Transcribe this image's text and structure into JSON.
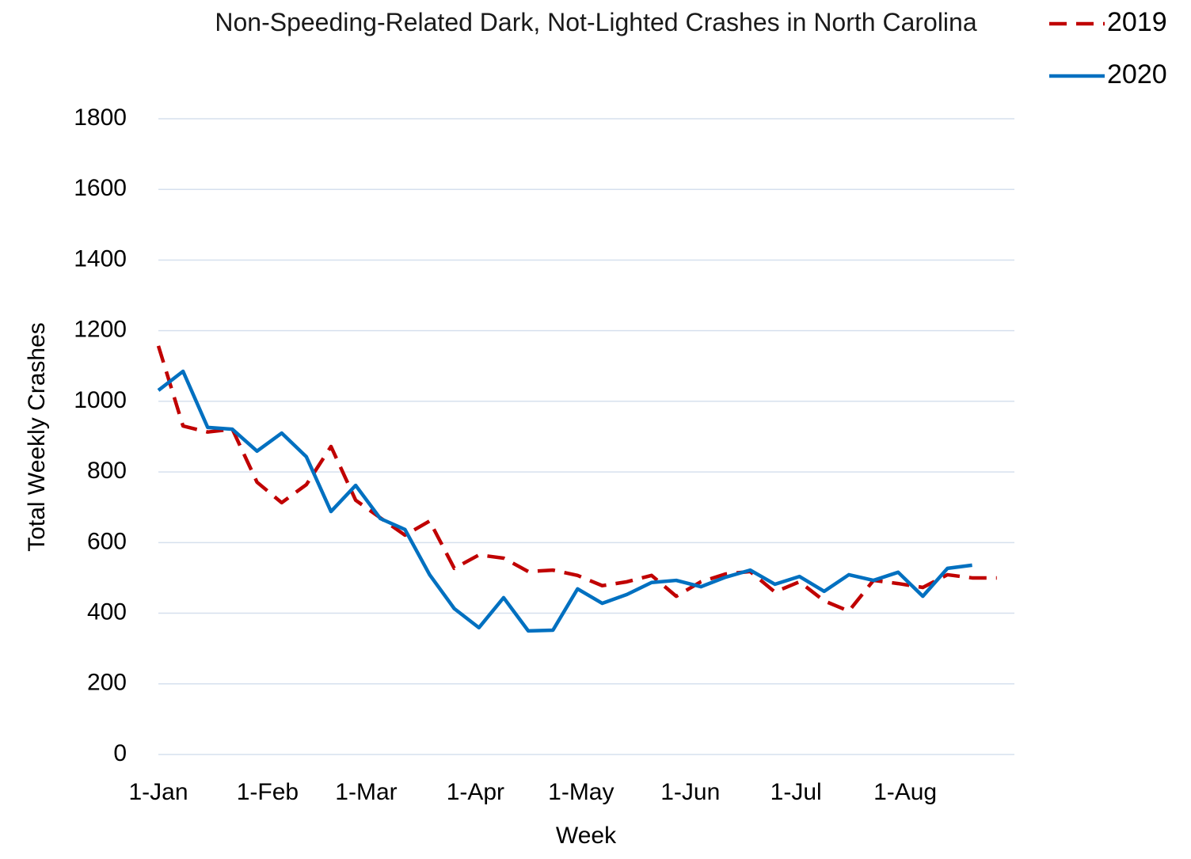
{
  "chart_data": {
    "type": "line",
    "title": "Non-Speeding-Related Dark, Not-Lighted Crashes in North Carolina",
    "x_label": "Week",
    "y_label": "Total Weekly Crashes",
    "x": [
      0,
      7,
      14,
      21,
      28,
      35,
      42,
      49,
      56,
      63,
      70,
      77,
      84,
      91,
      98,
      105,
      112,
      119,
      126,
      133,
      140,
      147,
      154,
      161,
      168,
      175,
      182,
      189,
      196,
      203,
      210,
      217,
      224,
      231,
      238
    ],
    "series": [
      {
        "name": "2019",
        "color": "#c00000",
        "dash": true,
        "values": [
          1157,
          930,
          913,
          921,
          771,
          713,
          764,
          872,
          720,
          670,
          621,
          661,
          527,
          565,
          556,
          518,
          522,
          507,
          478,
          489,
          507,
          448,
          489,
          511,
          518,
          460,
          489,
          435,
          406,
          493,
          484,
          473,
          509,
          500,
          500
        ]
      },
      {
        "name": "2020",
        "color": "#0070c0",
        "dash": false,
        "values": [
          1031,
          1085,
          926,
          921,
          859,
          910,
          843,
          688,
          762,
          668,
          637,
          509,
          413,
          359,
          444,
          350,
          352,
          469,
          428,
          453,
          487,
          493,
          475,
          502,
          522,
          482,
          504,
          462,
          509,
          493,
          516,
          448,
          527,
          536,
          null
        ]
      }
    ],
    "xlim": [
      0,
      243
    ],
    "xticks": [
      {
        "value": 0,
        "label": "1-Jan"
      },
      {
        "value": 31,
        "label": "1-Feb"
      },
      {
        "value": 59,
        "label": "1-Mar"
      },
      {
        "value": 90,
        "label": "1-Apr"
      },
      {
        "value": 120,
        "label": "1-May"
      },
      {
        "value": 151,
        "label": "1-Jun"
      },
      {
        "value": 181,
        "label": "1-Jul"
      },
      {
        "value": 212,
        "label": "1-Aug"
      }
    ],
    "ylim": [
      0,
      1800
    ],
    "yticks": [
      0,
      200,
      400,
      600,
      800,
      1000,
      1200,
      1400,
      1600,
      1800
    ],
    "grid": true,
    "legend": "top-right"
  }
}
